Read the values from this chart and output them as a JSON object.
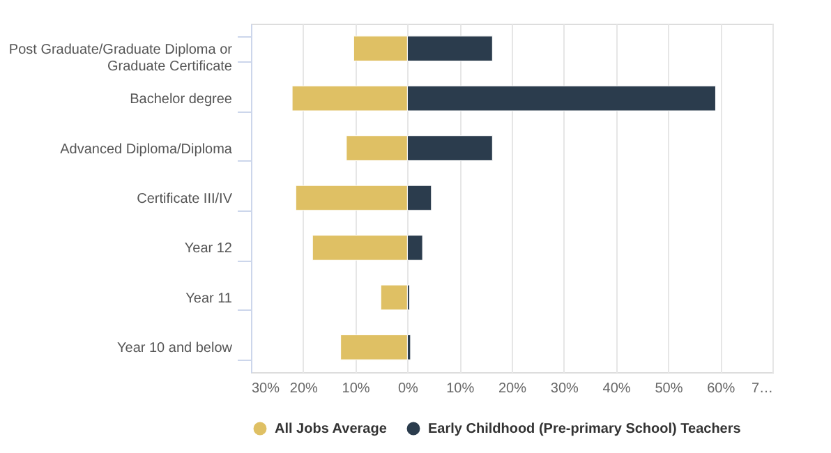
{
  "chart_data": {
    "type": "bar",
    "orientation": "horizontal",
    "stacked": true,
    "categories": [
      "Post Graduate/Graduate Diploma or Graduate Certificate",
      "Bachelor degree",
      "Advanced Diploma/Diploma",
      "Certificate III/IV",
      "Year 12",
      "Year 11",
      "Year 10 and below"
    ],
    "series": [
      {
        "name": "All Jobs Average",
        "color": "#dfc064",
        "values": [
          -10.3,
          -22.1,
          -11.7,
          -21.4,
          -18.2,
          -5.1,
          -12.8
        ]
      },
      {
        "name": "Early Childhood (Pre-primary School) Teachers",
        "color": "#2b3c4d",
        "values": [
          16.3,
          59.1,
          16.3,
          4.6,
          2.9,
          0.4,
          0.6
        ]
      }
    ],
    "xlim": [
      -30,
      70
    ],
    "xticks": [
      {
        "value": -30,
        "label": "30%"
      },
      {
        "value": -20,
        "label": "20%"
      },
      {
        "value": -10,
        "label": "10%"
      },
      {
        "value": 0,
        "label": "0%"
      },
      {
        "value": 10,
        "label": "10%"
      },
      {
        "value": 20,
        "label": "20%"
      },
      {
        "value": 30,
        "label": "30%"
      },
      {
        "value": 40,
        "label": "40%"
      },
      {
        "value": 50,
        "label": "50%"
      },
      {
        "value": 60,
        "label": "60%"
      },
      {
        "value": 70,
        "label": "7…"
      }
    ],
    "grid": "x",
    "legend": "bottom"
  }
}
